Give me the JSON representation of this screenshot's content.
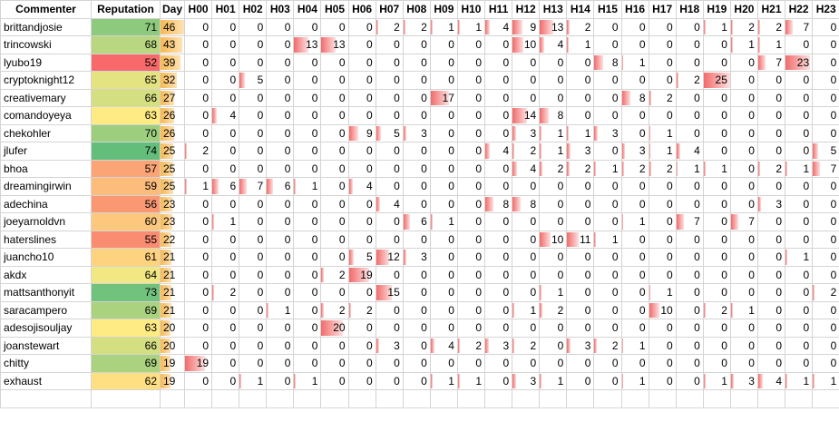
{
  "headers": [
    "Commenter",
    "Reputation",
    "Day",
    "H00",
    "H01",
    "H02",
    "H03",
    "H04",
    "H05",
    "H06",
    "H07",
    "H08",
    "H09",
    "H10",
    "H11",
    "H12",
    "H13",
    "H14",
    "H15",
    "H16",
    "H17",
    "H18",
    "H19",
    "H20",
    "H21",
    "H22",
    "H23"
  ],
  "rows": [
    {
      "name": "brittandjosie",
      "rep": 71,
      "day": 46,
      "hours": [
        0,
        0,
        0,
        0,
        0,
        0,
        0,
        2,
        2,
        1,
        1,
        4,
        9,
        13,
        2,
        0,
        0,
        0,
        0,
        1,
        2,
        2,
        7,
        0
      ]
    },
    {
      "name": "trincowski",
      "rep": 68,
      "day": 43,
      "hours": [
        0,
        0,
        0,
        0,
        13,
        13,
        0,
        0,
        0,
        0,
        0,
        0,
        10,
        4,
        1,
        0,
        0,
        0,
        0,
        0,
        1,
        1,
        0,
        0
      ]
    },
    {
      "name": "lyubo19",
      "rep": 52,
      "day": 39,
      "hours": [
        0,
        0,
        0,
        0,
        0,
        0,
        0,
        0,
        0,
        0,
        0,
        0,
        0,
        0,
        0,
        8,
        1,
        0,
        0,
        0,
        0,
        7,
        23,
        0
      ]
    },
    {
      "name": "cryptoknight12",
      "rep": 65,
      "day": 32,
      "hours": [
        0,
        0,
        5,
        0,
        0,
        0,
        0,
        0,
        0,
        0,
        0,
        0,
        0,
        0,
        0,
        0,
        0,
        0,
        2,
        25,
        0,
        0,
        0,
        0
      ]
    },
    {
      "name": "creativemary",
      "rep": 66,
      "day": 27,
      "hours": [
        0,
        0,
        0,
        0,
        0,
        0,
        0,
        0,
        0,
        17,
        0,
        0,
        0,
        0,
        0,
        0,
        8,
        2,
        0,
        0,
        0,
        0,
        0,
        0
      ]
    },
    {
      "name": "comandoyeya",
      "rep": 63,
      "day": 26,
      "hours": [
        0,
        4,
        0,
        0,
        0,
        0,
        0,
        0,
        0,
        0,
        0,
        0,
        14,
        8,
        0,
        0,
        0,
        0,
        0,
        0,
        0,
        0,
        0,
        0
      ]
    },
    {
      "name": "chekohler",
      "rep": 70,
      "day": 26,
      "hours": [
        0,
        0,
        0,
        0,
        0,
        0,
        9,
        5,
        3,
        0,
        0,
        0,
        3,
        1,
        1,
        3,
        0,
        1,
        0,
        0,
        0,
        0,
        0,
        0
      ]
    },
    {
      "name": "jlufer",
      "rep": 74,
      "day": 25,
      "hours": [
        2,
        0,
        0,
        0,
        0,
        0,
        0,
        0,
        0,
        0,
        0,
        4,
        2,
        1,
        3,
        0,
        3,
        1,
        4,
        0,
        0,
        0,
        0,
        5
      ]
    },
    {
      "name": "bhoa",
      "rep": 57,
      "day": 25,
      "hours": [
        0,
        0,
        0,
        0,
        0,
        0,
        0,
        0,
        0,
        0,
        0,
        0,
        4,
        2,
        2,
        1,
        2,
        2,
        1,
        1,
        0,
        2,
        1,
        7
      ]
    },
    {
      "name": "dreamingirwin",
      "rep": 59,
      "day": 25,
      "hours": [
        1,
        6,
        7,
        6,
        1,
        0,
        4,
        0,
        0,
        0,
        0,
        0,
        0,
        0,
        0,
        0,
        0,
        0,
        0,
        0,
        0,
        0,
        0,
        0
      ]
    },
    {
      "name": "adechina",
      "rep": 56,
      "day": 23,
      "hours": [
        0,
        0,
        0,
        0,
        0,
        0,
        0,
        4,
        0,
        0,
        0,
        8,
        8,
        0,
        0,
        0,
        0,
        0,
        0,
        0,
        0,
        3,
        0,
        0
      ]
    },
    {
      "name": "joeyarnoldvn",
      "rep": 60,
      "day": 23,
      "hours": [
        0,
        1,
        0,
        0,
        0,
        0,
        0,
        0,
        6,
        1,
        0,
        0,
        0,
        0,
        0,
        0,
        1,
        0,
        7,
        0,
        7,
        0,
        0,
        0
      ]
    },
    {
      "name": "haterslines",
      "rep": 55,
      "day": 22,
      "hours": [
        0,
        0,
        0,
        0,
        0,
        0,
        0,
        0,
        0,
        0,
        0,
        0,
        0,
        10,
        11,
        1,
        0,
        0,
        0,
        0,
        0,
        0,
        0,
        0
      ]
    },
    {
      "name": "juancho10",
      "rep": 61,
      "day": 21,
      "hours": [
        0,
        0,
        0,
        0,
        0,
        0,
        5,
        12,
        3,
        0,
        0,
        0,
        0,
        0,
        0,
        0,
        0,
        0,
        0,
        0,
        0,
        0,
        1,
        0
      ]
    },
    {
      "name": "akdx",
      "rep": 64,
      "day": 21,
      "hours": [
        0,
        0,
        0,
        0,
        0,
        2,
        19,
        0,
        0,
        0,
        0,
        0,
        0,
        0,
        0,
        0,
        0,
        0,
        0,
        0,
        0,
        0,
        0,
        0
      ]
    },
    {
      "name": "mattsanthonyit",
      "rep": 73,
      "day": 21,
      "hours": [
        0,
        2,
        0,
        0,
        0,
        0,
        0,
        15,
        0,
        0,
        0,
        0,
        0,
        1,
        0,
        0,
        0,
        1,
        0,
        0,
        0,
        0,
        0,
        2
      ]
    },
    {
      "name": "saracampero",
      "rep": 69,
      "day": 21,
      "hours": [
        0,
        0,
        0,
        1,
        0,
        2,
        2,
        0,
        0,
        0,
        0,
        0,
        1,
        2,
        0,
        0,
        0,
        10,
        0,
        2,
        1,
        0,
        0,
        0
      ]
    },
    {
      "name": "adesojisouljay",
      "rep": 63,
      "day": 20,
      "hours": [
        0,
        0,
        0,
        0,
        0,
        20,
        0,
        0,
        0,
        0,
        0,
        0,
        0,
        0,
        0,
        0,
        0,
        0,
        0,
        0,
        0,
        0,
        0,
        0
      ]
    },
    {
      "name": "joanstewart",
      "rep": 66,
      "day": 20,
      "hours": [
        0,
        0,
        0,
        0,
        0,
        0,
        0,
        3,
        0,
        4,
        2,
        3,
        2,
        0,
        3,
        2,
        1,
        0,
        0,
        0,
        0,
        0,
        0,
        0
      ]
    },
    {
      "name": "chitty",
      "rep": 69,
      "day": 19,
      "hours": [
        19,
        0,
        0,
        0,
        0,
        0,
        0,
        0,
        0,
        0,
        0,
        0,
        0,
        0,
        0,
        0,
        0,
        0,
        0,
        0,
        0,
        0,
        0,
        0
      ]
    },
    {
      "name": "exhaust",
      "rep": 62,
      "day": 19,
      "hours": [
        0,
        0,
        1,
        0,
        1,
        0,
        0,
        0,
        0,
        1,
        1,
        0,
        3,
        1,
        0,
        0,
        1,
        0,
        0,
        1,
        3,
        4,
        1,
        1
      ]
    }
  ],
  "colors": {
    "hour_bar": "#f26b6b",
    "day_bar": "#f7b84f",
    "rep_low": "#f8696b",
    "rep_mid": "#ffeb84",
    "rep_high": "#63be7b"
  }
}
